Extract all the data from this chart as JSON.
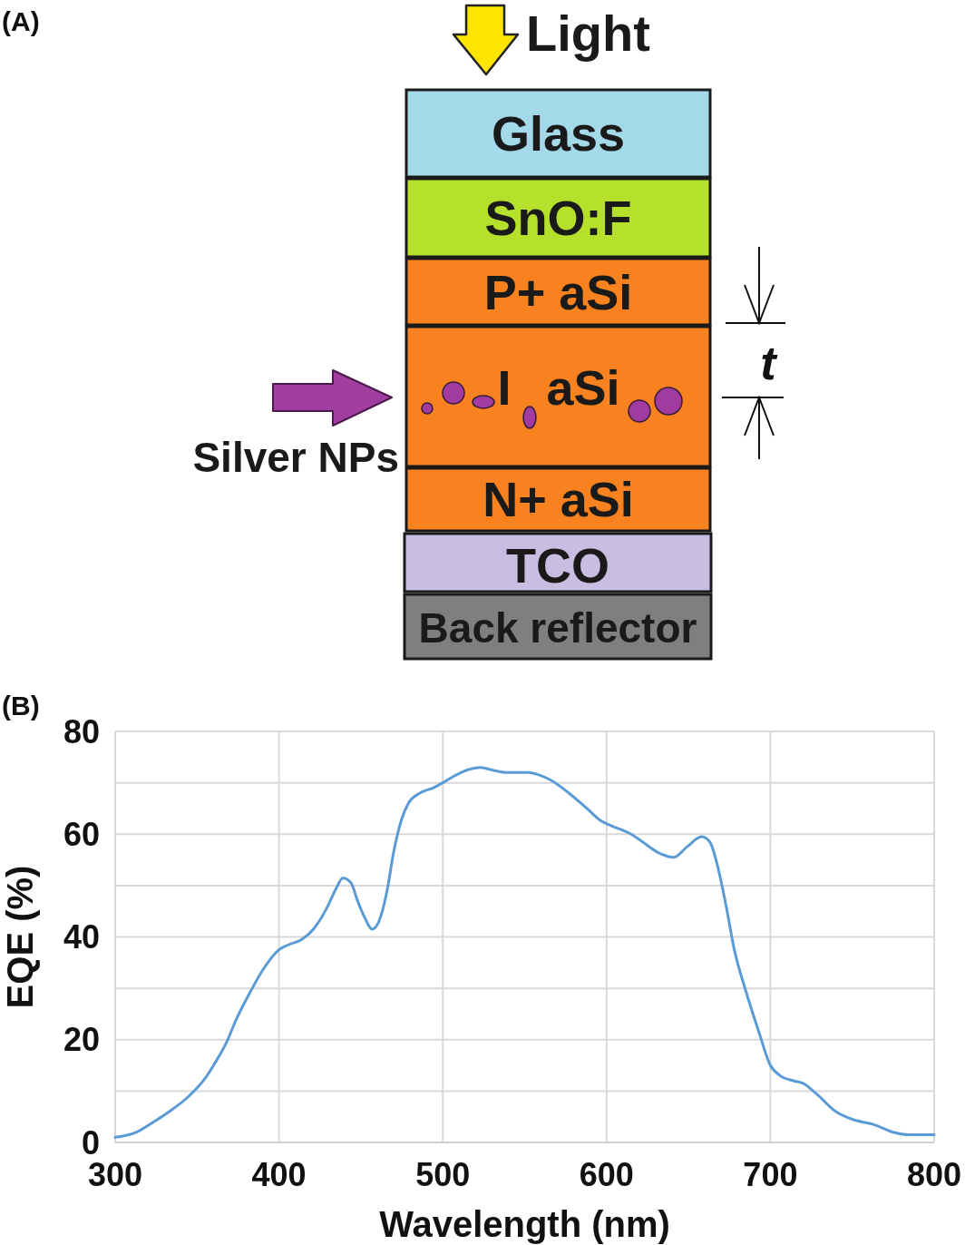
{
  "chart_data": [
    {
      "type": "other",
      "title": "(A)",
      "annotations": [
        "Glass",
        "SnO:F",
        "P+ aSi",
        "I aSi",
        "N+ aSi",
        "TCO",
        "Back reflector",
        "Light",
        "Silver NPs",
        "t"
      ]
    },
    {
      "type": "line",
      "title": "(B)",
      "xlabel": "Wavelength (nm)",
      "ylabel": "EQE (%)",
      "x": [
        300,
        313,
        321,
        333,
        345,
        355,
        361,
        368,
        374,
        382,
        390,
        400,
        406,
        414,
        421,
        429,
        435,
        439,
        444,
        448,
        452,
        457,
        461,
        466,
        470,
        475,
        479,
        486,
        494,
        500,
        508,
        515,
        523,
        530,
        539,
        552,
        559,
        566,
        577,
        588,
        597,
        604,
        615,
        622,
        631,
        641,
        649,
        658,
        663,
        668,
        673,
        678,
        685,
        693,
        700,
        706,
        714,
        720,
        728,
        740,
        750,
        763,
        775,
        785,
        800
      ],
      "series": [
        {
          "color": "#5b9bd5",
          "values": [
            1,
            2,
            3.5,
            6,
            9,
            12.5,
            15.5,
            19.5,
            24,
            29,
            33.5,
            37.5,
            38.5,
            39.5,
            41.5,
            45.5,
            49.5,
            51.5,
            50.5,
            47,
            44,
            41.5,
            43,
            49,
            56.5,
            63,
            66,
            68,
            69,
            70,
            71.5,
            72.5,
            73,
            72.5,
            72,
            72,
            71.5,
            70.5,
            68,
            65,
            62.5,
            61.5,
            60,
            58.5,
            56.5,
            55.5,
            57.5,
            59.5,
            58.5,
            53.5,
            46,
            37.5,
            29.5,
            21.5,
            15,
            13,
            12,
            11.5,
            9.5,
            6,
            4.5,
            3.5,
            2,
            1.5,
            1.5
          ]
        }
      ],
      "xlim": [
        300,
        800
      ],
      "xticks": [
        300,
        400,
        500,
        600,
        700,
        800
      ],
      "ylim": [
        0,
        80
      ],
      "yticks": [
        0,
        {
          "value": 10,
          "label": null
        },
        20,
        {
          "value": 30,
          "label": null
        },
        40,
        {
          "value": 50,
          "label": null
        },
        60,
        {
          "value": 70,
          "label": null
        },
        80
      ],
      "grid": true
    }
  ]
}
